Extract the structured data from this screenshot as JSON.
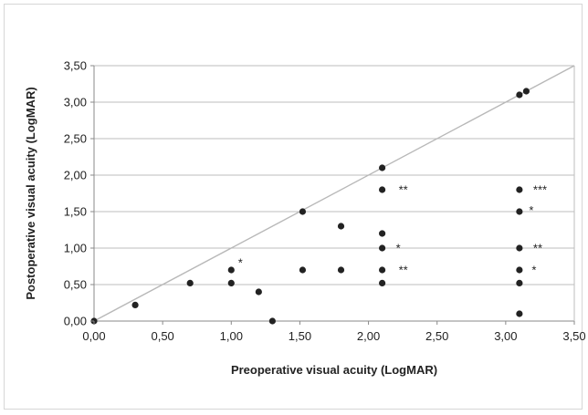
{
  "chart_data": {
    "type": "scatter",
    "title": "",
    "xlabel": "Preoperative visual acuity (LogMAR)",
    "ylabel": "Postoperative visual acuity (LogMAR)",
    "xlim": [
      0,
      3.5
    ],
    "ylim": [
      0,
      3.5
    ],
    "x_ticks": [
      "0,00",
      "0,50",
      "1,00",
      "1,50",
      "2,00",
      "2,50",
      "3,00",
      "3,50"
    ],
    "y_ticks": [
      "0,00",
      "0,50",
      "1,00",
      "1,50",
      "2,00",
      "2,50",
      "3,00",
      "3,50"
    ],
    "grid": "horizontal",
    "reference_line": {
      "from": [
        0,
        0
      ],
      "to": [
        3.5,
        3.5
      ]
    },
    "points": [
      {
        "x": 0.0,
        "y": 0.0
      },
      {
        "x": 0.3,
        "y": 0.22
      },
      {
        "x": 0.7,
        "y": 0.52
      },
      {
        "x": 1.0,
        "y": 0.52
      },
      {
        "x": 1.0,
        "y": 0.7
      },
      {
        "x": 1.2,
        "y": 0.4
      },
      {
        "x": 1.3,
        "y": 0.0
      },
      {
        "x": 1.52,
        "y": 1.5
      },
      {
        "x": 1.52,
        "y": 0.7
      },
      {
        "x": 1.8,
        "y": 1.3
      },
      {
        "x": 1.8,
        "y": 0.7
      },
      {
        "x": 2.1,
        "y": 2.1
      },
      {
        "x": 2.1,
        "y": 1.8
      },
      {
        "x": 2.1,
        "y": 1.2
      },
      {
        "x": 2.1,
        "y": 1.0
      },
      {
        "x": 2.1,
        "y": 0.7
      },
      {
        "x": 2.1,
        "y": 0.52
      },
      {
        "x": 3.1,
        "y": 3.1
      },
      {
        "x": 3.15,
        "y": 3.15
      },
      {
        "x": 3.1,
        "y": 1.8
      },
      {
        "x": 3.1,
        "y": 1.5
      },
      {
        "x": 3.1,
        "y": 1.0
      },
      {
        "x": 3.1,
        "y": 0.7
      },
      {
        "x": 3.1,
        "y": 0.52
      },
      {
        "x": 3.1,
        "y": 0.1
      }
    ],
    "annotations": [
      {
        "x": 1.05,
        "y": 0.82,
        "text": "*"
      },
      {
        "x": 2.22,
        "y": 1.82,
        "text": "**"
      },
      {
        "x": 2.2,
        "y": 1.02,
        "text": "*"
      },
      {
        "x": 2.22,
        "y": 0.72,
        "text": "**"
      },
      {
        "x": 3.2,
        "y": 1.82,
        "text": "***"
      },
      {
        "x": 3.17,
        "y": 1.54,
        "text": "*"
      },
      {
        "x": 3.2,
        "y": 1.02,
        "text": "**"
      },
      {
        "x": 3.19,
        "y": 0.72,
        "text": "*"
      }
    ],
    "colors": {
      "points": "#222222",
      "reference_line": "#b8b8b8",
      "grid": "#bdbdbd",
      "axis": "#8a8a8a"
    }
  }
}
